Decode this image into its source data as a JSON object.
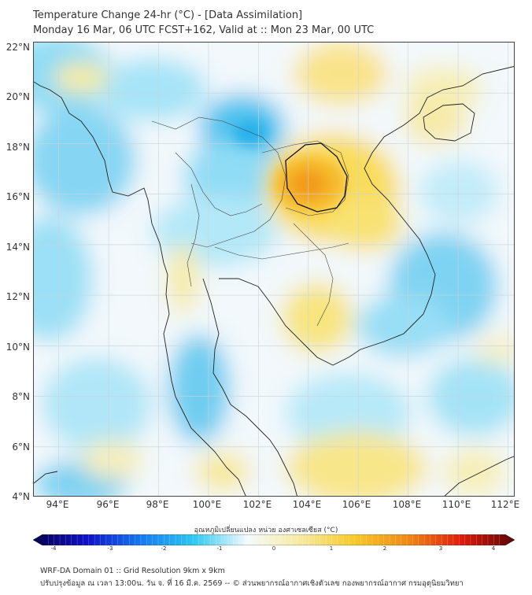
{
  "header": {
    "line1": "Temperature Change 24-hr (°C) - [Data Assimilation]",
    "line2": "Monday 16 Mar, 06 UTC FCST+162, Valid at :: Mon 23 Mar, 00 UTC"
  },
  "map": {
    "lat_labels": [
      "22°N",
      "20°N",
      "18°N",
      "16°N",
      "14°N",
      "12°N",
      "10°N",
      "8°N",
      "6°N",
      "4°N"
    ],
    "lon_labels": [
      "94°E",
      "96°E",
      "98°E",
      "100°E",
      "102°E",
      "104°E",
      "106°E",
      "108°E",
      "110°E",
      "112°E"
    ],
    "lat_range": [
      4,
      22
    ],
    "lon_range": [
      93,
      112.3
    ],
    "field": {
      "description_hidden": false,
      "warm_max_region": "Northeast Thailand / Laos",
      "units": "°C"
    }
  },
  "colorbar": {
    "title": "อุณหภูมิเปลี่ยนแปลง หน่วย องศาเซลเซียส (°C)",
    "ticks": [
      "-4",
      "-3",
      "-2",
      "-1",
      "0",
      "1",
      "2",
      "3",
      "4"
    ],
    "range": [
      -4,
      4
    ],
    "colors": [
      "#06004a",
      "#1010c8",
      "#1478f0",
      "#2cc8f0",
      "#f5fafd",
      "#f6eaa0",
      "#f7c92a",
      "#f08a14",
      "#e01a0c",
      "#5a0505"
    ]
  },
  "footer": {
    "line1": "WRF-DA Domain 01 :: Grid Resolution 9km x 9km",
    "line2": "ปรับปรุงข้อมูล ณ เวลา 13:00น. วัน จ. ที่ 16 มี.ค. 2569 -- © ส่วนพยากรณ์อากาศเชิงตัวเลข กองพยากรณ์อากาศ กรมอุตุนิยมวิทยา"
  }
}
